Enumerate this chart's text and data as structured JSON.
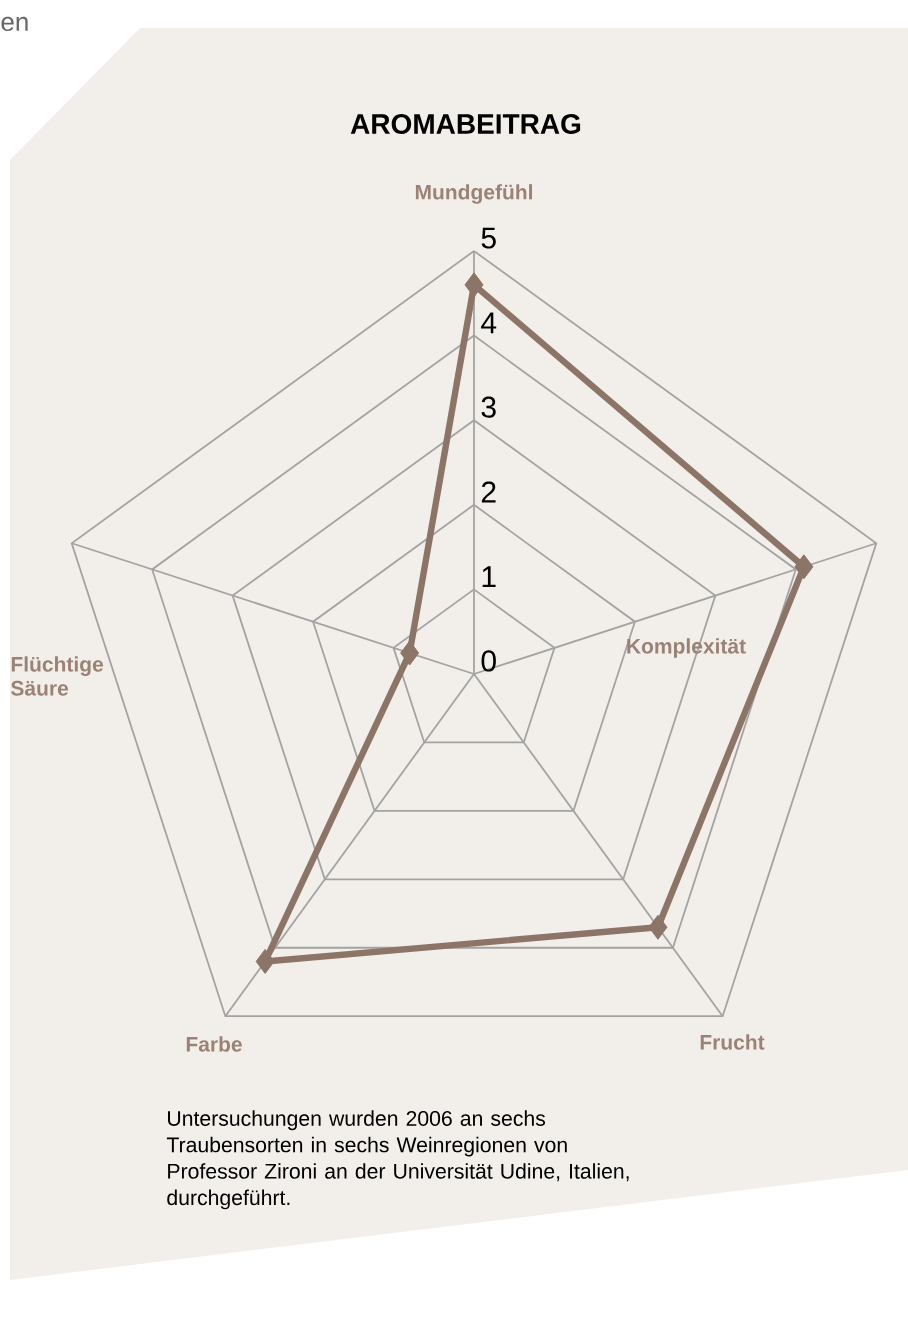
{
  "chart_data": {
    "type": "radar",
    "title": "AROMABEITRAG",
    "categories": [
      "Mundgefühl",
      "Komplexität",
      "Frucht",
      "Farbe",
      "Flüchtige Säure"
    ],
    "series": [
      {
        "color": "#8c7567",
        "values": [
          4.6,
          4.1,
          3.7,
          4.2,
          0.8
        ]
      }
    ],
    "ylim": [
      0,
      5
    ],
    "yticks": [
      0,
      1,
      2,
      3,
      4,
      5
    ],
    "grid": true,
    "marker": "diamond",
    "annotations": [
      "en",
      "Untersuchungen wurden 2006 an sechs Traubensorten in sechs Weinregionen von Professor Zironi an der Universität Udine, Italien, durchgeführt."
    ]
  }
}
